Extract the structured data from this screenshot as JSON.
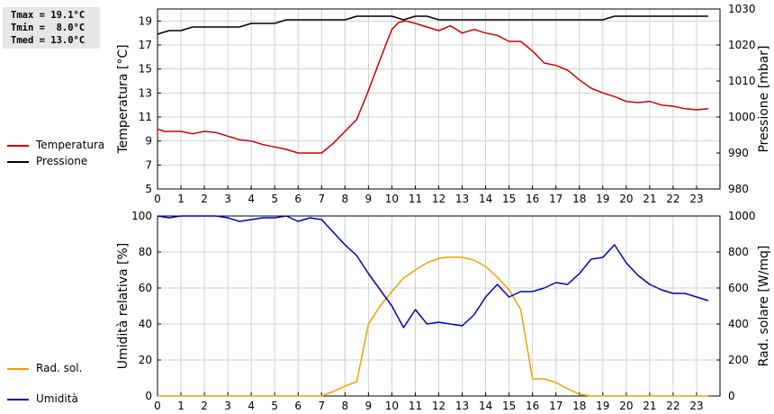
{
  "stats": {
    "tmax": "Tmax = 19.1°C",
    "tmin": "Tmin =  8.0°C",
    "tmed": "Tmed = 13.0°C"
  },
  "legend_top": [
    {
      "label": "Temperatura",
      "color": "#cc0000"
    },
    {
      "label": "Pressione",
      "color": "#000000"
    }
  ],
  "legend_bottom": [
    {
      "label": "Umidità",
      "color": "#0000bb"
    },
    {
      "label": "Rad. sol.",
      "color": "#f0a000"
    }
  ],
  "chart_data": [
    {
      "type": "line",
      "xlim": [
        0,
        24
      ],
      "x_ticks": [
        "0",
        "1",
        "2",
        "3",
        "4",
        "5",
        "6",
        "7",
        "8",
        "9",
        "10",
        "11",
        "12",
        "13",
        "14",
        "15",
        "16",
        "17",
        "18",
        "19",
        "20",
        "21",
        "22",
        "23"
      ],
      "ylabel": "Temperatura [°C]",
      "ylim": [
        5,
        20
      ],
      "y_ticks": [
        5,
        7,
        9,
        11,
        13,
        15,
        17,
        19
      ],
      "y2label": "Pressione [mbar]",
      "y2lim": [
        980,
        1030
      ],
      "y2_ticks": [
        980,
        990,
        1000,
        1010,
        1020,
        1030
      ],
      "grid": true,
      "series": [
        {
          "name": "Temperatura",
          "axis": "left",
          "color": "#cc0000",
          "x": [
            0,
            0.3,
            1,
            1.5,
            2,
            2.5,
            3,
            3.5,
            4,
            4.5,
            5,
            5.5,
            6,
            6.5,
            7,
            7.5,
            8,
            8.5,
            9,
            9.5,
            10,
            10.3,
            10.6,
            11,
            11.5,
            12,
            12.5,
            13,
            13.5,
            14,
            14.5,
            15,
            15.5,
            16,
            16.5,
            17,
            17.5,
            18,
            18.5,
            19,
            19.5,
            20,
            20.5,
            21,
            21.5,
            22,
            22.5,
            23,
            23.5
          ],
          "y": [
            10.0,
            9.8,
            9.8,
            9.6,
            9.8,
            9.7,
            9.4,
            9.1,
            9.0,
            8.7,
            8.5,
            8.3,
            8.0,
            8.0,
            8.0,
            8.8,
            9.8,
            10.8,
            13.2,
            15.8,
            18.3,
            18.9,
            19.0,
            18.8,
            18.5,
            18.2,
            18.6,
            18.0,
            18.3,
            18.0,
            17.8,
            17.3,
            17.3,
            16.5,
            15.5,
            15.3,
            14.9,
            14.1,
            13.4,
            13.0,
            12.7,
            12.3,
            12.2,
            12.3,
            12.0,
            11.9,
            11.7,
            11.6,
            11.7
          ]
        },
        {
          "name": "Pressione",
          "axis": "right",
          "color": "#000000",
          "x": [
            0,
            0.5,
            1,
            1.5,
            2,
            2.5,
            3,
            3.5,
            4,
            4.5,
            5,
            5.5,
            6,
            6.5,
            7,
            7.5,
            8,
            8.5,
            9,
            9.5,
            10,
            10.5,
            11,
            11.5,
            12,
            12.5,
            13,
            13.5,
            14,
            14.5,
            15,
            15.5,
            16,
            16.5,
            17,
            17.5,
            18,
            18.5,
            19,
            19.5,
            20,
            20.5,
            21,
            21.5,
            22,
            22.5,
            23,
            23.5
          ],
          "y": [
            1023,
            1024,
            1024,
            1025,
            1025,
            1025,
            1025,
            1025,
            1026,
            1026,
            1026,
            1027,
            1027,
            1027,
            1027,
            1027,
            1027,
            1028,
            1028,
            1028,
            1028,
            1027,
            1028,
            1028,
            1027,
            1027,
            1027,
            1027,
            1027,
            1027,
            1027,
            1027,
            1027,
            1027,
            1027,
            1027,
            1027,
            1027,
            1027,
            1028,
            1028,
            1028,
            1028,
            1028,
            1028,
            1028,
            1028,
            1028
          ]
        }
      ]
    },
    {
      "type": "line",
      "xlim": [
        0,
        24
      ],
      "x_ticks": [
        "0",
        "1",
        "2",
        "3",
        "4",
        "5",
        "6",
        "7",
        "8",
        "9",
        "10",
        "11",
        "12",
        "13",
        "14",
        "15",
        "16",
        "17",
        "18",
        "19",
        "20",
        "21",
        "22",
        "23"
      ],
      "ylabel": "Umidità relativa [%]",
      "ylim": [
        0,
        100
      ],
      "y_ticks": [
        0,
        20,
        40,
        60,
        80,
        100
      ],
      "y2label": "Rad. solare [W/mq]",
      "y2lim": [
        0,
        1000
      ],
      "y2_ticks": [
        0,
        200,
        400,
        600,
        800,
        1000
      ],
      "grid": true,
      "series": [
        {
          "name": "Umidità",
          "axis": "left",
          "color": "#0000bb",
          "x": [
            0,
            0.5,
            1,
            1.5,
            2,
            2.5,
            3,
            3.5,
            4,
            4.5,
            5,
            5.5,
            6,
            6.5,
            7,
            7.5,
            8,
            8.5,
            9,
            9.5,
            10,
            10.5,
            11,
            11.5,
            12,
            12.5,
            13,
            13.5,
            14,
            14.5,
            15,
            15.5,
            16,
            16.5,
            17,
            17.5,
            18,
            18.5,
            19,
            19.5,
            20,
            20.5,
            21,
            21.5,
            22,
            22.5,
            23,
            23.5
          ],
          "y": [
            100,
            99,
            100,
            100,
            100,
            100,
            99,
            97,
            98,
            99,
            99,
            100,
            97,
            99,
            98,
            91,
            84,
            78,
            68,
            59,
            50,
            38,
            48,
            40,
            41,
            40,
            39,
            45,
            55,
            62,
            55,
            58,
            58,
            60,
            63,
            62,
            68,
            76,
            77,
            84,
            74,
            67,
            62,
            59,
            57,
            57,
            55,
            53
          ]
        },
        {
          "name": "Rad. sol.",
          "axis": "right",
          "color": "#f0a000",
          "x": [
            0,
            1,
            2,
            3,
            4,
            5,
            6,
            7,
            7.5,
            8,
            8.5,
            9,
            9.5,
            10,
            10.5,
            11,
            11.5,
            12,
            12.5,
            13,
            13.5,
            14,
            14.5,
            15,
            15.5,
            16,
            16.5,
            17,
            17.5,
            18,
            18.5,
            19,
            20,
            21,
            22,
            23,
            23.5
          ],
          "y": [
            0,
            0,
            0,
            0,
            0,
            0,
            0,
            0,
            25,
            55,
            80,
            400,
            500,
            580,
            655,
            700,
            740,
            765,
            772,
            770,
            755,
            720,
            660,
            590,
            480,
            95,
            95,
            75,
            40,
            10,
            0,
            0,
            0,
            0,
            0,
            0,
            0
          ]
        }
      ]
    }
  ]
}
